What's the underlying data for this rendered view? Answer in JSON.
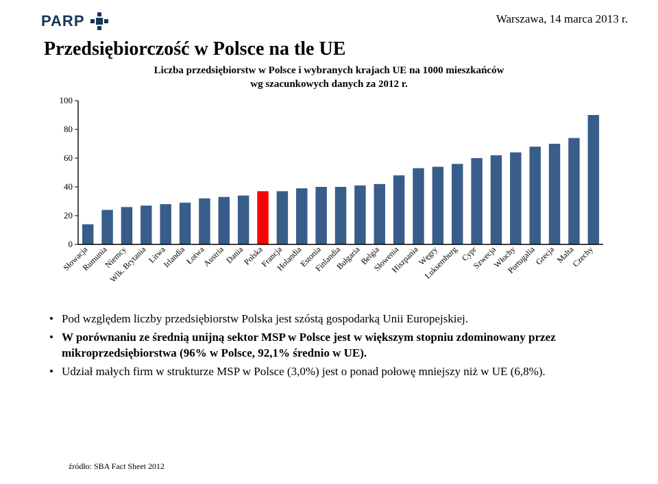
{
  "header": {
    "logo_text": "PARP",
    "logo_color": "#17365d",
    "date": "Warszawa, 14 marca 2013 r."
  },
  "title": "Przedsiębiorczość w Polsce na tle UE",
  "subtitle_line1": "Liczba przedsiębiorstw w Polsce i wybranych krajach UE na 1000 mieszkańców",
  "subtitle_line2": "wg szacunkowych danych za 2012 r.",
  "chart": {
    "type": "bar",
    "ylim": [
      0,
      100
    ],
    "ytick_step": 20,
    "yticks": [
      0,
      20,
      40,
      60,
      80,
      100
    ],
    "axis_color": "#000000",
    "background_color": "#ffffff",
    "bar_color_default": "#385d8a",
    "bar_color_highlight": "#ff0000",
    "highlight_category": "Polska",
    "bar_width_ratio": 0.58,
    "label_fontsize": 13,
    "xcat_fontsize": 12,
    "xcat_rotation_deg": -45,
    "categories": [
      "Słowacja",
      "Rumunia",
      "Niemcy",
      "Wlk. Brytania",
      "Litwa",
      "Irlandia",
      "Łotwa",
      "Austria",
      "Dania",
      "Polska",
      "Francja",
      "Holandia",
      "Estonia",
      "Finlandia",
      "Bułgaria",
      "Belgia",
      "Słowenia",
      "Hiszpania",
      "Węgry",
      "Luksemburg",
      "Cypr",
      "Szwecja",
      "Włochy",
      "Portugalia",
      "Grecja",
      "Malta",
      "Czechy"
    ],
    "values": [
      14,
      24,
      26,
      27,
      28,
      29,
      32,
      33,
      34,
      37,
      37,
      39,
      40,
      40,
      41,
      42,
      48,
      53,
      54,
      56,
      60,
      62,
      64,
      68,
      70,
      74,
      90
    ]
  },
  "bullets": {
    "b1": "Pod względem liczby przedsiębiorstw Polska jest szóstą gospodarką Unii Europejskiej.",
    "b2": "W porównaniu ze średnią unijną sektor MSP w Polsce jest w większym stopniu zdominowany przez mikroprzedsiębiorstwa (96% w Polsce, 92,1% średnio w UE).",
    "b3": "Udział małych firm w strukturze MSP w Polsce (3,0%) jest o ponad połowę mniejszy niż w UE (6,8%)."
  },
  "source": "źródło: SBA Fact Sheet 2012"
}
